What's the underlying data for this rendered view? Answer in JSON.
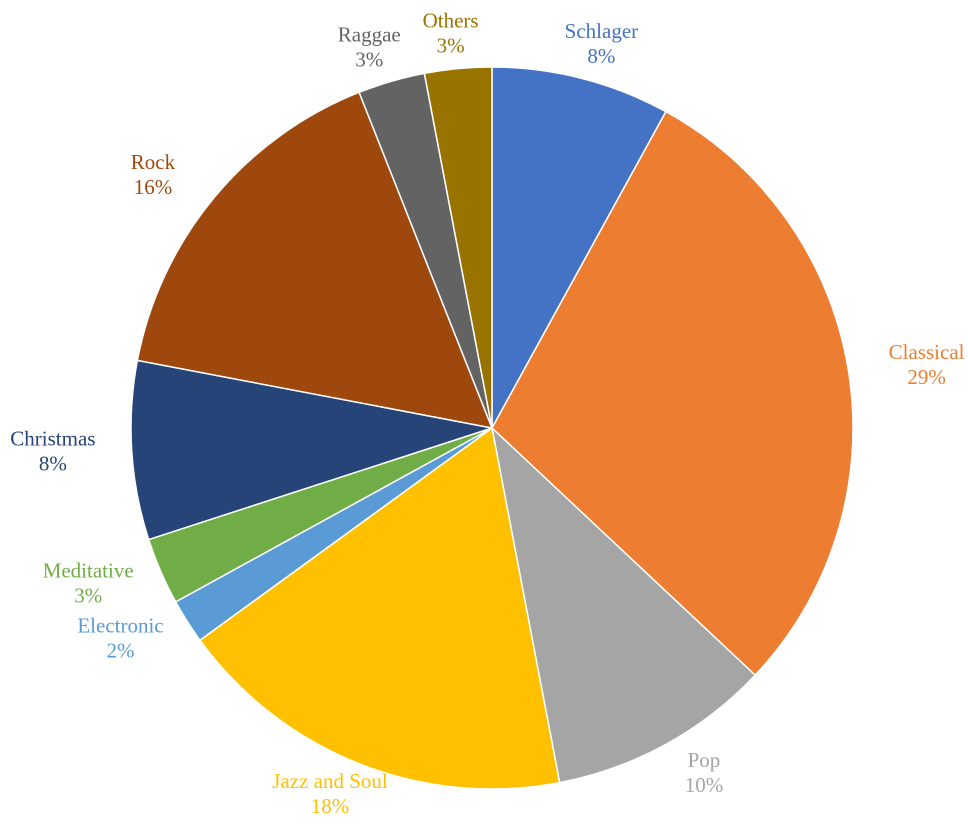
{
  "chart_data": {
    "type": "pie",
    "categories": [
      "Schlager",
      "Classical",
      "Pop",
      "Jazz and Soul",
      "Electronic",
      "Meditative",
      "Christmas",
      "Rock",
      "Raggae",
      "Others"
    ],
    "values": [
      8,
      29,
      10,
      18,
      2,
      3,
      8,
      16,
      3,
      3
    ],
    "value_labels": [
      "8%",
      "29%",
      "10%",
      "18%",
      "2%",
      "3%",
      "8%",
      "16%",
      "3%",
      "3%"
    ],
    "colors": [
      "#4472c4",
      "#ed7d31",
      "#a5a5a5",
      "#ffc000",
      "#5b9bd5",
      "#70ad47",
      "#264478",
      "#9e480e",
      "#636363",
      "#997300"
    ]
  }
}
